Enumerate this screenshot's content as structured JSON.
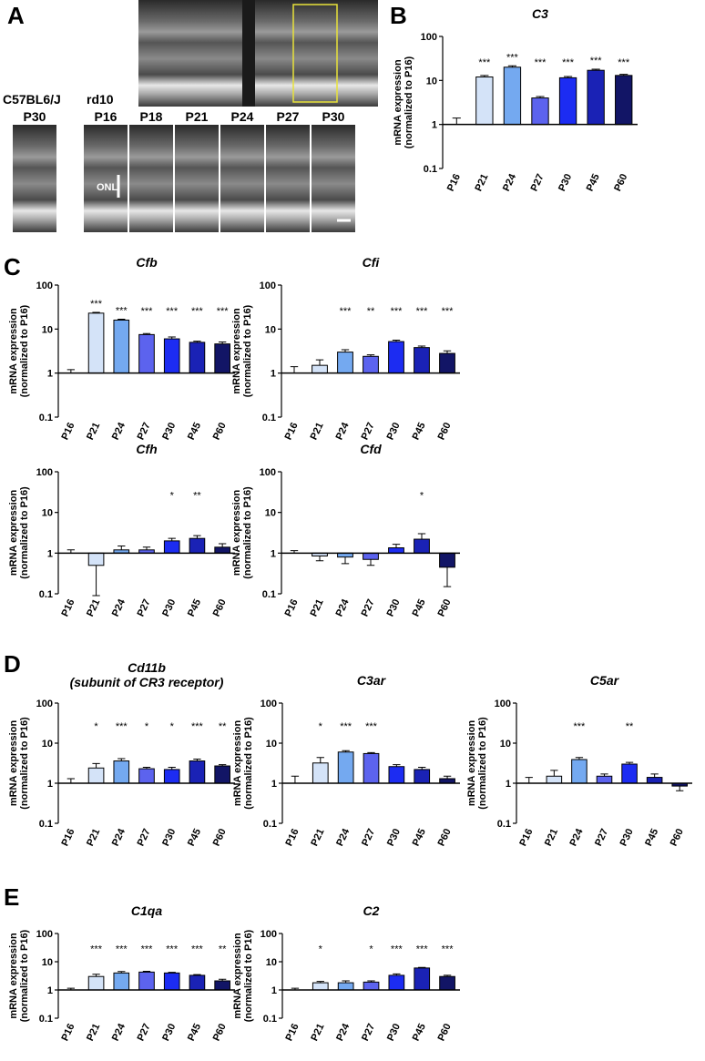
{
  "figure": {
    "panel_letters": [
      "A",
      "B",
      "C",
      "D",
      "E"
    ],
    "panel_a": {
      "control_strain": "C57BL6/J",
      "control_age": "P30",
      "mutant_strain": "rd10",
      "mutant_ages": [
        "P16",
        "P18",
        "P21",
        "P24",
        "P27",
        "P30"
      ],
      "layer_label": "ONL"
    }
  },
  "chart_data": [
    {
      "type": "bar",
      "title": "C3",
      "ylabel": [
        "mRNA expression",
        "(normalized to P16)"
      ],
      "categories": [
        "P16",
        "P21",
        "P24",
        "P27",
        "P30",
        "P45",
        "P60"
      ],
      "values": [
        1,
        12,
        20,
        4,
        11.5,
        17,
        13
      ],
      "errors": [
        0.4,
        1,
        1.5,
        0.3,
        0.8,
        1,
        0.8
      ],
      "annotations": [
        null,
        "***",
        "***",
        "***",
        "***",
        "***",
        "***"
      ],
      "colors": [
        "#ffffff",
        "#d4e3f8",
        "#74a9f0",
        "#5c63ee",
        "#1c2cf2",
        "#1a22b5",
        "#121566"
      ],
      "ylim": [
        0.1,
        100
      ],
      "yticks": [
        0.1,
        1,
        10,
        100
      ],
      "log_scale": true,
      "bar_origin": 1
    },
    {
      "type": "bar",
      "title": "Cfb",
      "ylabel": [
        "mRNA expression",
        "(normalized to P16)"
      ],
      "categories": [
        "P16",
        "P21",
        "P24",
        "P27",
        "P30",
        "P45",
        "P60"
      ],
      "values": [
        1,
        23,
        16,
        7.5,
        6,
        5,
        4.6
      ],
      "errors": [
        0.2,
        1,
        0.8,
        0.4,
        0.6,
        0.3,
        0.5
      ],
      "annotations": [
        null,
        "***",
        "***",
        "***",
        "***",
        "***",
        "***"
      ],
      "colors": [
        "#ffffff",
        "#d4e3f8",
        "#74a9f0",
        "#5c63ee",
        "#1c2cf2",
        "#1a22b5",
        "#121566"
      ],
      "ylim": [
        0.1,
        100
      ],
      "yticks": [
        0.1,
        1,
        10,
        100
      ],
      "log_scale": true,
      "bar_origin": 1
    },
    {
      "type": "bar",
      "title": "Cfi",
      "ylabel": [
        "mRNA expression",
        "(normalized to P16)"
      ],
      "categories": [
        "P16",
        "P21",
        "P24",
        "P27",
        "P30",
        "P45",
        "P60"
      ],
      "values": [
        1,
        1.5,
        3,
        2.4,
        5.2,
        3.8,
        2.8
      ],
      "errors": [
        0.4,
        0.5,
        0.4,
        0.2,
        0.4,
        0.3,
        0.4
      ],
      "annotations": [
        null,
        null,
        "***",
        "**",
        "***",
        "***",
        "***"
      ],
      "colors": [
        "#ffffff",
        "#d4e3f8",
        "#74a9f0",
        "#5c63ee",
        "#1c2cf2",
        "#1a22b5",
        "#121566"
      ],
      "ylim": [
        0.1,
        100
      ],
      "yticks": [
        0.1,
        1,
        10,
        100
      ],
      "log_scale": true,
      "bar_origin": 1
    },
    {
      "type": "bar",
      "title": "Cfh",
      "ylabel": [
        "mRNA expression",
        "(normalized to P16)"
      ],
      "categories": [
        "P16",
        "P21",
        "P24",
        "P27",
        "P30",
        "P45",
        "P60"
      ],
      "values": [
        1,
        0.5,
        1.2,
        1.2,
        2,
        2.3,
        1.4
      ],
      "errors": [
        0.2,
        0.41,
        0.3,
        0.2,
        0.3,
        0.4,
        0.3
      ],
      "annotations": [
        null,
        null,
        null,
        null,
        "*",
        "**",
        null
      ],
      "colors": [
        "#ffffff",
        "#d4e3f8",
        "#74a9f0",
        "#5c63ee",
        "#1c2cf2",
        "#1a22b5",
        "#121566"
      ],
      "ylim": [
        0.1,
        100
      ],
      "yticks": [
        0.1,
        1,
        10,
        100
      ],
      "log_scale": true,
      "bar_origin": 1
    },
    {
      "type": "bar",
      "title": "Cfd",
      "ylabel": [
        "mRNA expression",
        "(normalized to P16)"
      ],
      "categories": [
        "P16",
        "P21",
        "P24",
        "P27",
        "P30",
        "P45",
        "P60"
      ],
      "values": [
        1,
        0.85,
        0.8,
        0.7,
        1.35,
        2.2,
        0.45
      ],
      "errors": [
        0.15,
        0.2,
        0.25,
        0.2,
        0.3,
        0.8,
        0.3
      ],
      "annotations": [
        null,
        null,
        null,
        null,
        null,
        "*",
        null
      ],
      "colors": [
        "#ffffff",
        "#d4e3f8",
        "#74a9f0",
        "#5c63ee",
        "#1c2cf2",
        "#1a22b5",
        "#121566"
      ],
      "ylim": [
        0.1,
        100
      ],
      "yticks": [
        0.1,
        1,
        10,
        100
      ],
      "log_scale": true,
      "bar_origin": 1
    },
    {
      "type": "bar",
      "title": "Cd11b",
      "subtitle": "(subunit of CR3 receptor)",
      "ylabel": [
        "mRNA expression",
        "(normalized to P16)"
      ],
      "categories": [
        "P16",
        "P21",
        "P24",
        "P27",
        "P30",
        "P45",
        "P60"
      ],
      "values": [
        1,
        2.4,
        3.6,
        2.3,
        2.2,
        3.6,
        2.7
      ],
      "errors": [
        0.3,
        0.7,
        0.5,
        0.2,
        0.3,
        0.4,
        0.2
      ],
      "annotations": [
        null,
        "*",
        "***",
        "*",
        "*",
        "***",
        "**"
      ],
      "colors": [
        "#ffffff",
        "#d4e3f8",
        "#74a9f0",
        "#5c63ee",
        "#1c2cf2",
        "#1a22b5",
        "#121566"
      ],
      "ylim": [
        0.1,
        100
      ],
      "yticks": [
        0.1,
        1,
        10,
        100
      ],
      "log_scale": true,
      "bar_origin": 1
    },
    {
      "type": "bar",
      "title": "C3ar",
      "ylabel": [
        "mRNA expression",
        "(normalized to P16)"
      ],
      "categories": [
        "P16",
        "P21",
        "P24",
        "P27",
        "P30",
        "P45",
        "P60"
      ],
      "values": [
        1,
        3.2,
        6,
        5.5,
        2.6,
        2.2,
        1.3
      ],
      "errors": [
        0.5,
        1.2,
        0.5,
        0.3,
        0.3,
        0.3,
        0.2
      ],
      "annotations": [
        null,
        "*",
        "***",
        "***",
        null,
        null,
        null
      ],
      "colors": [
        "#ffffff",
        "#d4e3f8",
        "#74a9f0",
        "#5c63ee",
        "#1c2cf2",
        "#1a22b5",
        "#121566"
      ],
      "ylim": [
        0.1,
        100
      ],
      "yticks": [
        0.1,
        1,
        10,
        100
      ],
      "log_scale": true,
      "bar_origin": 1
    },
    {
      "type": "bar",
      "title": "C5ar",
      "ylabel": [
        "mRNA expression",
        "(normalized to P16)"
      ],
      "categories": [
        "P16",
        "P21",
        "P24",
        "P27",
        "P30",
        "P45",
        "P60"
      ],
      "values": [
        1,
        1.5,
        3.9,
        1.5,
        3,
        1.4,
        0.85
      ],
      "errors": [
        0.4,
        0.6,
        0.5,
        0.2,
        0.3,
        0.3,
        0.2
      ],
      "annotations": [
        null,
        null,
        "***",
        null,
        "**",
        null,
        null
      ],
      "colors": [
        "#ffffff",
        "#d4e3f8",
        "#74a9f0",
        "#5c63ee",
        "#1c2cf2",
        "#1a22b5",
        "#121566"
      ],
      "ylim": [
        0.1,
        100
      ],
      "yticks": [
        0.1,
        1,
        10,
        100
      ],
      "log_scale": true,
      "bar_origin": 1
    },
    {
      "type": "bar",
      "title": "C1qa",
      "ylabel": [
        "mRNA expression",
        "(normalized to P16)"
      ],
      "categories": [
        "P16",
        "P21",
        "P24",
        "P27",
        "P30",
        "P45",
        "P60"
      ],
      "values": [
        1,
        3,
        4,
        4.3,
        4,
        3.3,
        2.1
      ],
      "errors": [
        0.15,
        0.6,
        0.5,
        0.3,
        0.2,
        0.2,
        0.3
      ],
      "annotations": [
        null,
        "***",
        "***",
        "***",
        "***",
        "***",
        "**"
      ],
      "colors": [
        "#ffffff",
        "#d4e3f8",
        "#74a9f0",
        "#5c63ee",
        "#1c2cf2",
        "#1a22b5",
        "#121566"
      ],
      "ylim": [
        0.1,
        100
      ],
      "yticks": [
        0.1,
        1,
        10,
        100
      ],
      "log_scale": true,
      "bar_origin": 1
    },
    {
      "type": "bar",
      "title": "C2",
      "ylabel": [
        "mRNA expression",
        "(normalized to P16)"
      ],
      "categories": [
        "P16",
        "P21",
        "P24",
        "P27",
        "P30",
        "P45",
        "P60"
      ],
      "values": [
        1,
        1.8,
        1.8,
        1.9,
        3.3,
        6,
        3
      ],
      "errors": [
        0.15,
        0.2,
        0.3,
        0.2,
        0.4,
        0.3,
        0.3
      ],
      "annotations": [
        null,
        "*",
        null,
        "*",
        "***",
        "***",
        "***"
      ],
      "colors": [
        "#ffffff",
        "#d4e3f8",
        "#74a9f0",
        "#5c63ee",
        "#1c2cf2",
        "#1a22b5",
        "#121566"
      ],
      "ylim": [
        0.1,
        100
      ],
      "yticks": [
        0.1,
        1,
        10,
        100
      ],
      "log_scale": true,
      "bar_origin": 1
    }
  ]
}
